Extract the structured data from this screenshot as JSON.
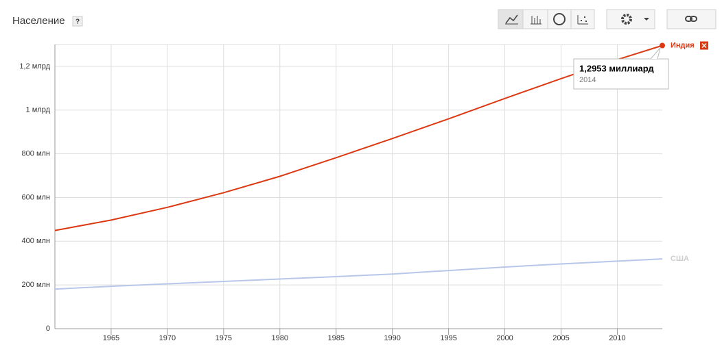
{
  "chart_data": {
    "type": "line",
    "title": "Население",
    "help": "?",
    "x": [
      1960,
      1965,
      1970,
      1975,
      1980,
      1985,
      1990,
      1995,
      2000,
      2005,
      2010,
      2014
    ],
    "series": [
      {
        "name": "Индия",
        "color": "#dc3912",
        "values": [
          449000000,
          497000000,
          555000000,
          622000000,
          697000000,
          782000000,
          870000000,
          960000000,
          1053000000,
          1144000000,
          1231000000,
          1295300000
        ]
      },
      {
        "name": "США",
        "color": "#b8c7e9",
        "values": [
          181000000,
          194000000,
          205000000,
          216000000,
          227000000,
          238000000,
          250000000,
          266000000,
          282000000,
          296000000,
          309000000,
          319000000
        ]
      }
    ],
    "xlim": [
      1960,
      2014
    ],
    "xticks": [
      1965,
      1970,
      1975,
      1980,
      1985,
      1990,
      1995,
      2000,
      2005,
      2010
    ],
    "ylim": [
      0,
      1300000000
    ],
    "yticks": [
      0,
      {
        "value": 200000000,
        "label": "200 млн"
      },
      {
        "value": 400000000,
        "label": "400 млн"
      },
      {
        "value": 600000000,
        "label": "600 млн"
      },
      {
        "value": 800000000,
        "label": "800 млн"
      },
      {
        "value": 1000000000,
        "label": "1 млрд"
      },
      {
        "value": 1200000000,
        "label": "1,2 млрд"
      }
    ],
    "grid": true,
    "tooltip": {
      "text": "1,2953 миллиард",
      "year": "2014"
    }
  }
}
